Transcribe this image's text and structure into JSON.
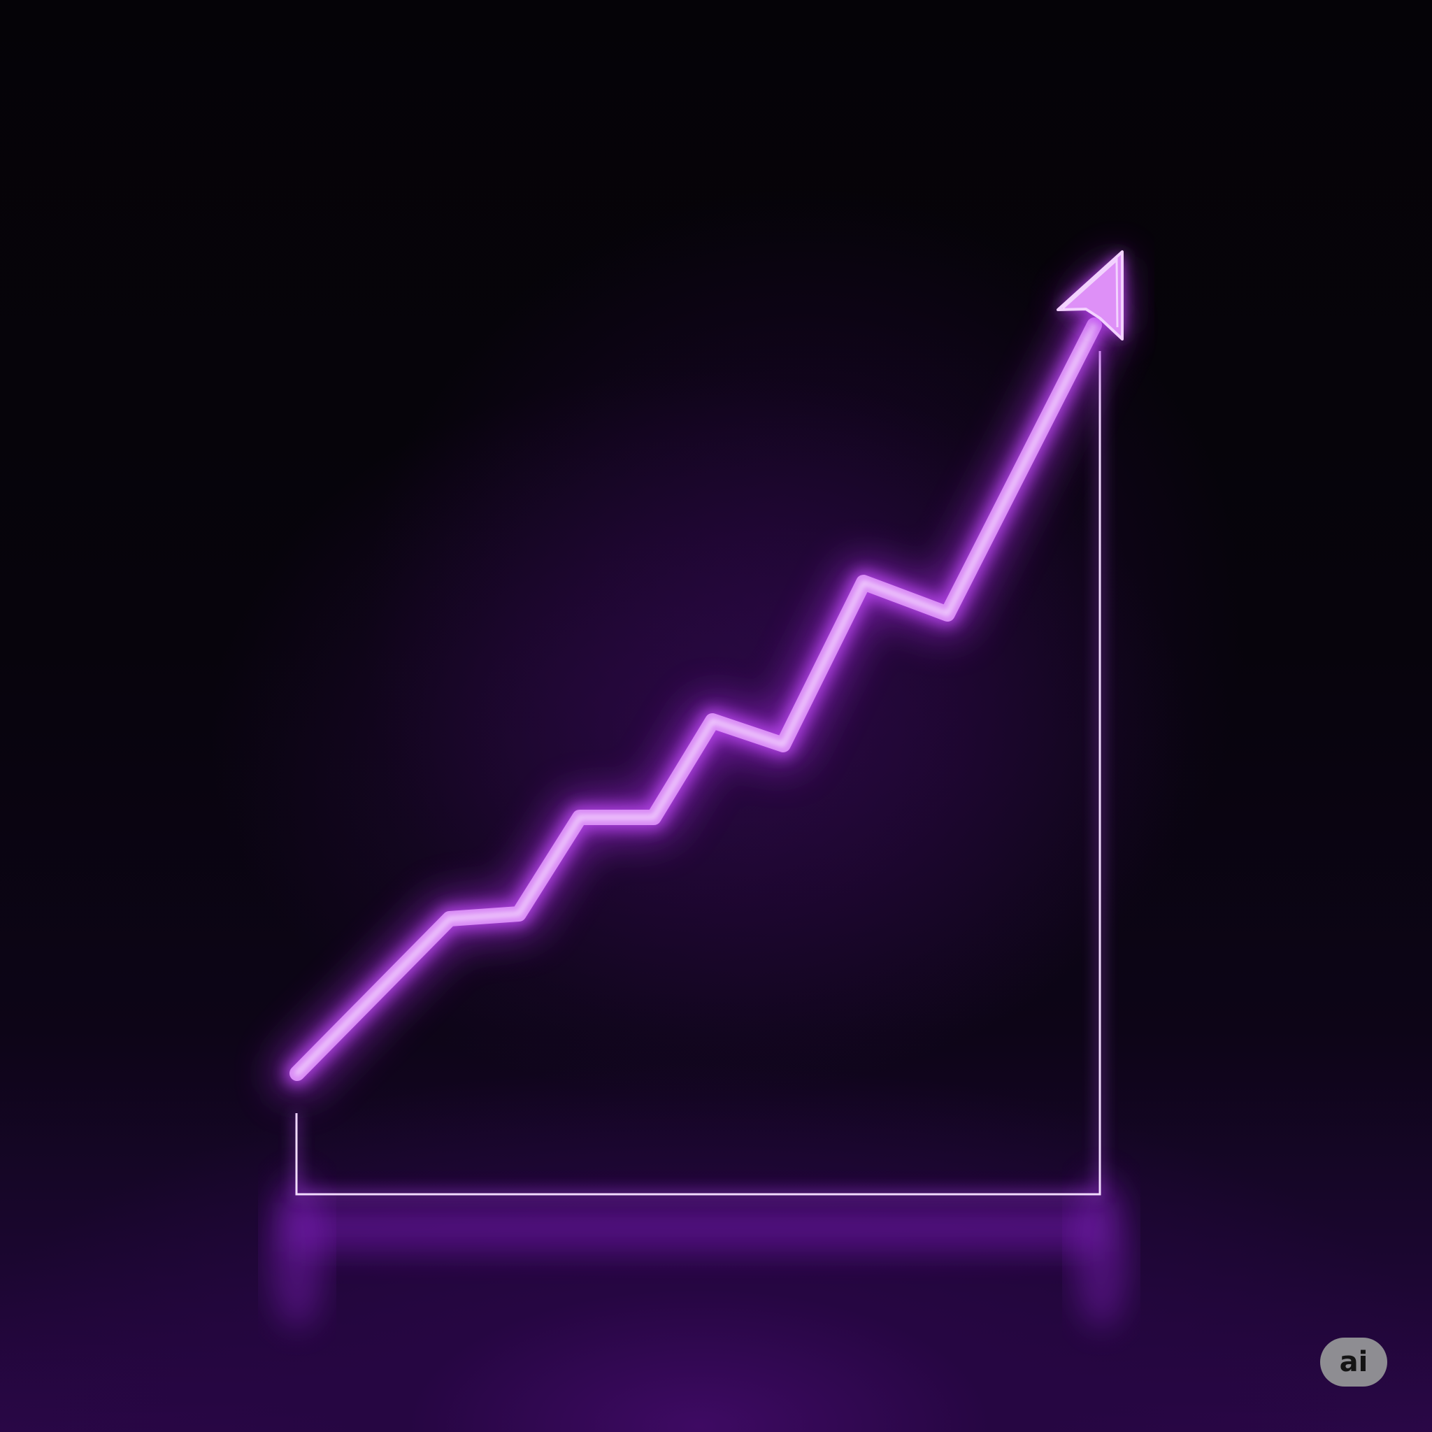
{
  "scene": {
    "subject": "neon-growth-chart",
    "accent_color": "#d98cf5",
    "glow_color": "#a52ce0",
    "axis_color": "#f2dcff",
    "background_color": "#050308",
    "floor_glow_color": "#3e0a63",
    "trend": "rising",
    "icon": "up-arrow-icon"
  },
  "badge": {
    "label": "ai"
  }
}
